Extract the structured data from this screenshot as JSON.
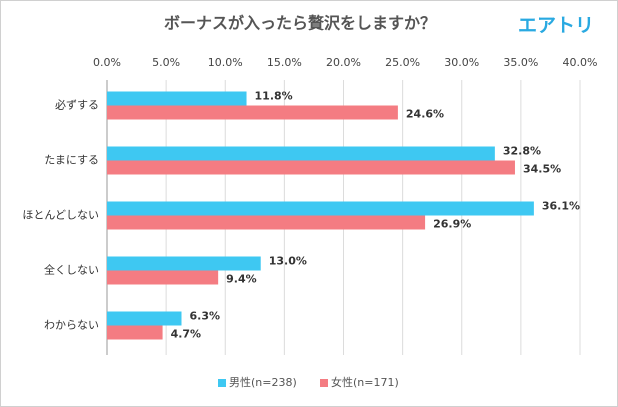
{
  "chart_data": {
    "type": "bar",
    "orientation": "horizontal",
    "title": "ボーナスが入ったら贅沢をしますか？",
    "logo": "エアトリ",
    "categories": [
      "必ずする",
      "たまにする",
      "ほとんどしない",
      "全くしない",
      "わからない"
    ],
    "series": [
      {
        "name": "男性(n=238)",
        "color": "#3ec8f2",
        "values": [
          11.8,
          32.8,
          36.1,
          13.0,
          6.3
        ],
        "value_labels": [
          "11.8%",
          "32.8%",
          "36.1%",
          "13.0%",
          "6.3%"
        ]
      },
      {
        "name": "女性(n=171)",
        "color": "#f47c82",
        "values": [
          24.6,
          34.5,
          26.9,
          9.4,
          4.7
        ],
        "value_labels": [
          "24.6%",
          "34.5%",
          "26.9%",
          "9.4%",
          "4.7%"
        ]
      }
    ],
    "xlim": [
      0,
      40
    ],
    "xticks": [
      {
        "value": 0,
        "label": "0.0%"
      },
      {
        "value": 5,
        "label": "5.0%"
      },
      {
        "value": 10,
        "label": "10.0%"
      },
      {
        "value": 15,
        "label": "15.0%"
      },
      {
        "value": 20,
        "label": "20.0%"
      },
      {
        "value": 25,
        "label": "25.0%"
      },
      {
        "value": 30,
        "label": "30.0%"
      },
      {
        "value": 35,
        "label": "35.0%"
      },
      {
        "value": 40,
        "label": "40.0%"
      }
    ],
    "grid": true,
    "legend": "bottom"
  }
}
